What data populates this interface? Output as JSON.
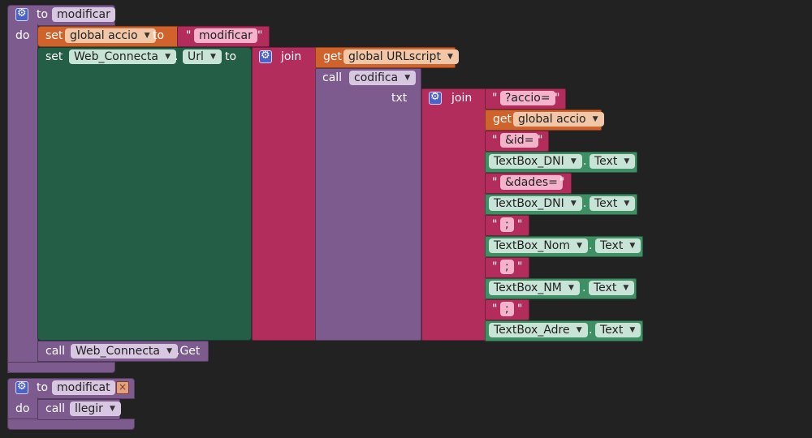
{
  "colors": {
    "background": "#222222",
    "procedure": "#7e5b8e",
    "variable_set": "#d0632b",
    "component_set": "#255e47",
    "text": "#b22d5c",
    "component_get": "#3f8f65"
  },
  "block1": {
    "to_kw": "to",
    "name": "modificar",
    "do_kw": "do",
    "set_kw": "set",
    "var_field": "global accio",
    "to_kw2": "to",
    "str_value": "modificar",
    "set2_kw": "set",
    "comp_field": "Web_Connecta",
    "dot": ".",
    "prop_field": "Url",
    "to_kw3": "to",
    "join_kw": "join",
    "get_kw": "get",
    "get_field": "global URLscript",
    "call_kw": "call",
    "call_field": "codifica",
    "txt_kw": "txt",
    "join2_kw": "join",
    "str_accio": "?accio=",
    "get2_kw": "get",
    "get2_field": "global accio",
    "str_id": "&id=",
    "tb1_field": "TextBox_DNI",
    "tb1_prop": "Text",
    "str_dades": "&dades=",
    "tb2_field": "TextBox_DNI",
    "tb2_prop": "Text",
    "str_sep1": ";",
    "tb3_field": "TextBox_Nom",
    "tb3_prop": "Text",
    "str_sep2": ";",
    "tb4_field": "TextBox_NM",
    "tb4_prop": "Text",
    "str_sep3": ";",
    "tb5_field": "TextBox_Adre",
    "tb5_prop": "Text",
    "call2_kw": "call",
    "call2_field": "Web_Connecta",
    "call2_method": ".Get"
  },
  "block2": {
    "to_kw": "to",
    "name": "modificat",
    "do_kw": "do",
    "call_kw": "call",
    "call_field": "llegir"
  },
  "quote_char": "\""
}
